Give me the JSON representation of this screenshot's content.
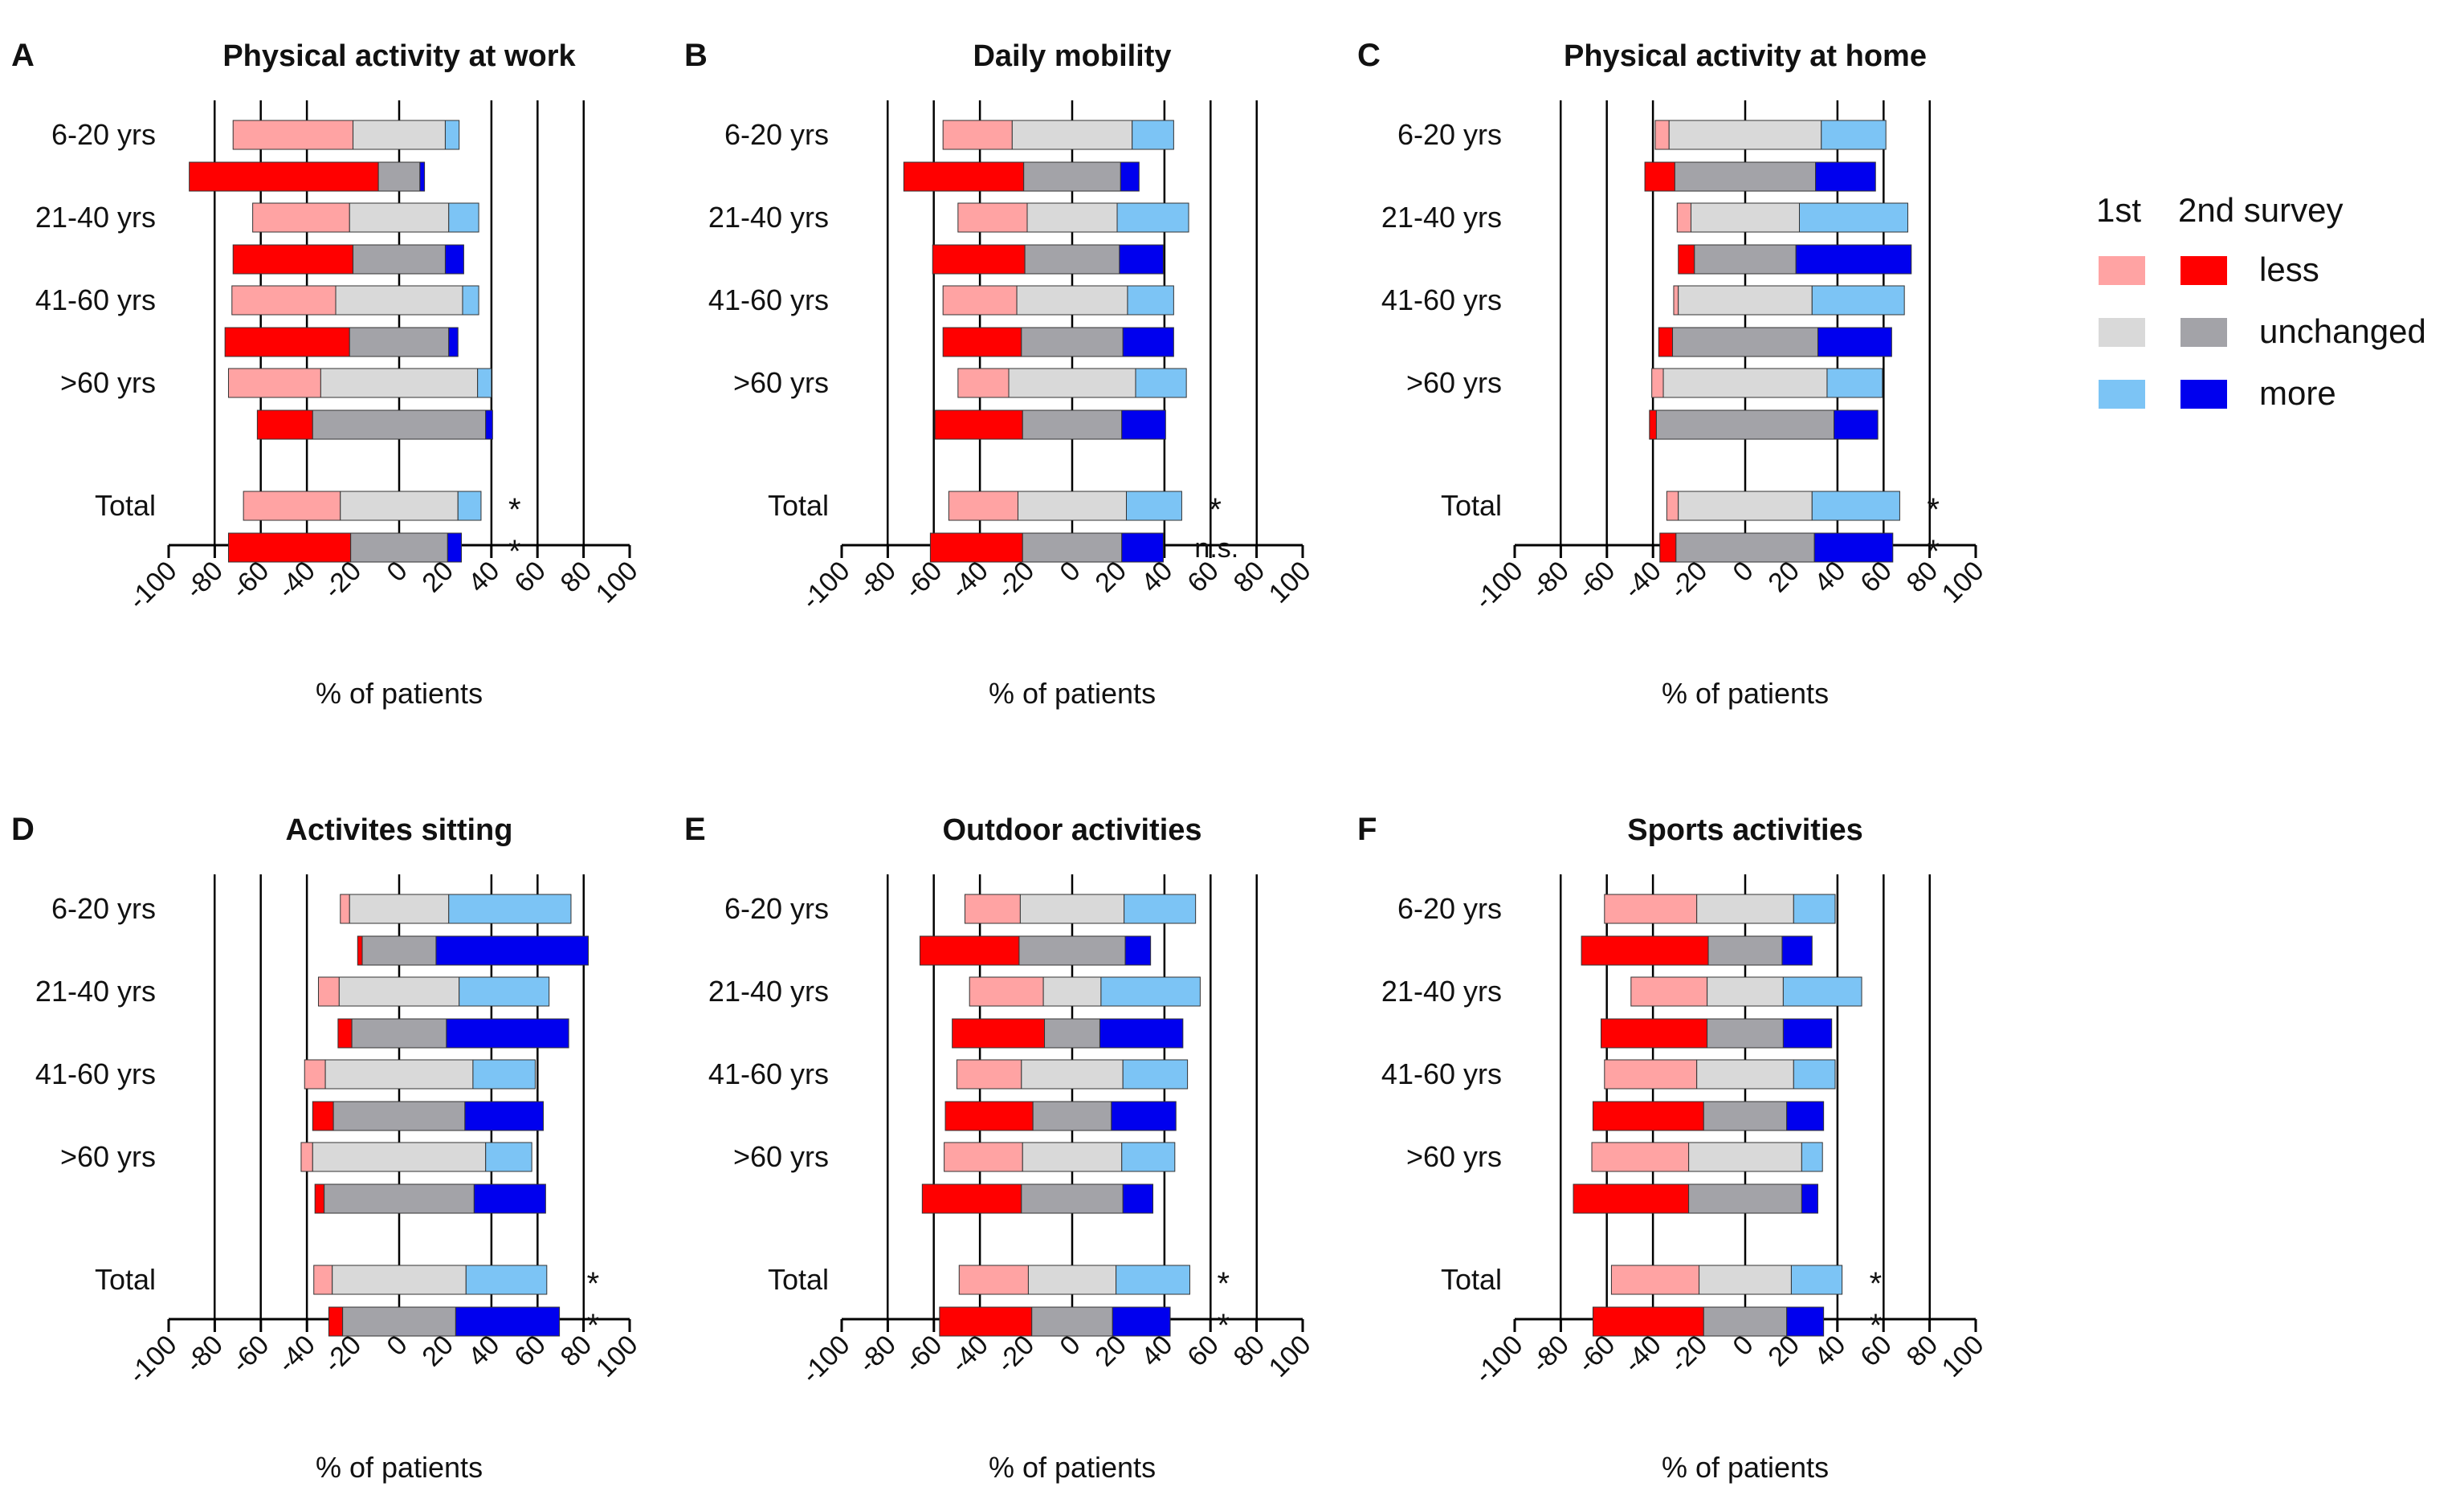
{
  "colors": {
    "first_less": "#FFA3A3",
    "first_unchanged": "#D9D9D9",
    "first_more": "#7CC4F5",
    "second_less": "#FF0000",
    "second_unchanged": "#A3A3A8",
    "second_more": "#0000EE",
    "axis": "#000000",
    "grid": "#000000"
  },
  "legend": {
    "col1": "1st",
    "col2": "2nd survey",
    "rows": [
      {
        "label": "less",
        "first_key": "first_less",
        "second_key": "second_less"
      },
      {
        "label": "unchanged",
        "first_key": "first_unchanged",
        "second_key": "second_unchanged"
      },
      {
        "label": "more",
        "first_key": "first_more",
        "second_key": "second_more"
      }
    ]
  },
  "chart_data": [
    {
      "type": "bar",
      "letter": "A",
      "title": "Physical activity at work",
      "xlabel": "% of patients",
      "xlim": [
        -100,
        100
      ],
      "xticks": [
        "-100",
        "-80",
        "-60",
        "-40",
        "-20",
        "0",
        "20",
        "40",
        "60",
        "80",
        "100"
      ],
      "gridlines": [
        -80,
        -60,
        -40,
        40,
        60,
        80
      ],
      "categories": [
        "6-20 yrs",
        "21-40 yrs",
        "41-60 yrs",
        ">60 yrs",
        "Total"
      ],
      "series": [
        {
          "name": "1st survey",
          "less": [
            52,
            42,
            45,
            40,
            42
          ],
          "unchanged": [
            40,
            43,
            55,
            68,
            51
          ],
          "more": [
            6,
            13,
            7,
            6,
            10
          ]
        },
        {
          "name": "2nd survey",
          "less": [
            82,
            52,
            54,
            24,
            53
          ],
          "unchanged": [
            18,
            40,
            43,
            75,
            42
          ],
          "more": [
            2,
            8,
            4,
            3,
            6
          ]
        }
      ],
      "significance": [
        "*",
        "*"
      ]
    },
    {
      "type": "bar",
      "letter": "B",
      "title": "Daily mobility",
      "xlabel": "% of patients",
      "xlim": [
        -100,
        100
      ],
      "xticks": [
        "-100",
        "-80",
        "-60",
        "-40",
        "-20",
        "0",
        "20",
        "40",
        "60",
        "80",
        "100"
      ],
      "gridlines": [
        -80,
        -60,
        -40,
        40,
        60,
        80
      ],
      "categories": [
        "6-20 yrs",
        "21-40 yrs",
        "41-60 yrs",
        ">60 yrs",
        "Total"
      ],
      "series": [
        {
          "name": "1st survey",
          "less": [
            30,
            30,
            32,
            22,
            30
          ],
          "unchanged": [
            52,
            39,
            48,
            55,
            47
          ],
          "more": [
            18,
            31,
            20,
            22,
            24
          ]
        },
        {
          "name": "2nd survey",
          "less": [
            52,
            40,
            34,
            38,
            40
          ],
          "unchanged": [
            42,
            41,
            44,
            43,
            43
          ],
          "more": [
            8,
            19,
            22,
            19,
            18
          ]
        }
      ],
      "significance": [
        "*",
        "n.s."
      ]
    },
    {
      "type": "bar",
      "letter": "C",
      "title": "Physical activity at home",
      "xlabel": "% of patients",
      "xlim": [
        -100,
        100
      ],
      "xticks": [
        "-100",
        "-80",
        "-60",
        "-40",
        "-20",
        "0",
        "20",
        "40",
        "60",
        "80",
        "100"
      ],
      "gridlines": [
        -80,
        -60,
        -40,
        40,
        60,
        80
      ],
      "categories": [
        "6-20 yrs",
        "21-40 yrs",
        "41-60 yrs",
        ">60 yrs",
        "Total"
      ],
      "series": [
        {
          "name": "1st survey",
          "less": [
            6,
            6,
            2,
            5,
            5
          ],
          "unchanged": [
            66,
            47,
            58,
            71,
            58
          ],
          "more": [
            28,
            47,
            40,
            24,
            38
          ]
        },
        {
          "name": "2nd survey",
          "less": [
            13,
            7,
            6,
            3,
            7
          ],
          "unchanged": [
            61,
            44,
            63,
            77,
            60
          ],
          "more": [
            26,
            50,
            32,
            19,
            34
          ]
        }
      ],
      "significance": [
        "*",
        "*"
      ]
    },
    {
      "type": "bar",
      "letter": "D",
      "title": "Activites sitting",
      "xlabel": "% of patients",
      "xlim": [
        -100,
        100
      ],
      "xticks": [
        "-100",
        "-80",
        "-60",
        "-40",
        "-20",
        "0",
        "20",
        "40",
        "60",
        "80",
        "100"
      ],
      "gridlines": [
        -80,
        -60,
        -40,
        40,
        60,
        80
      ],
      "categories": [
        "6-20 yrs",
        "21-40 yrs",
        "41-60 yrs",
        ">60 yrs",
        "Total"
      ],
      "series": [
        {
          "name": "1st survey",
          "less": [
            4,
            9,
            9,
            5,
            8
          ],
          "unchanged": [
            43,
            52,
            64,
            75,
            58
          ],
          "more": [
            53,
            39,
            27,
            20,
            35
          ]
        },
        {
          "name": "2nd survey",
          "less": [
            2,
            6,
            9,
            4,
            6
          ],
          "unchanged": [
            32,
            41,
            57,
            65,
            49
          ],
          "more": [
            66,
            53,
            34,
            31,
            45
          ]
        }
      ],
      "significance": [
        "*",
        "*"
      ]
    },
    {
      "type": "bar",
      "letter": "E",
      "title": "Outdoor activities",
      "xlabel": "% of patients",
      "xlim": [
        -100,
        100
      ],
      "xticks": [
        "-100",
        "-80",
        "-60",
        "-40",
        "-20",
        "0",
        "20",
        "40",
        "60",
        "80",
        "100"
      ],
      "gridlines": [
        -80,
        -60,
        -40,
        40,
        60,
        80
      ],
      "categories": [
        "6-20 yrs",
        "21-40 yrs",
        "41-60 yrs",
        ">60 yrs",
        "Total"
      ],
      "series": [
        {
          "name": "1st survey",
          "less": [
            24,
            32,
            28,
            34,
            30
          ],
          "unchanged": [
            45,
            25,
            44,
            43,
            38
          ],
          "more": [
            31,
            43,
            28,
            23,
            32
          ]
        },
        {
          "name": "2nd survey",
          "less": [
            43,
            40,
            38,
            43,
            40
          ],
          "unchanged": [
            46,
            24,
            34,
            44,
            35
          ],
          "more": [
            11,
            36,
            28,
            13,
            25
          ]
        }
      ],
      "significance": [
        "*",
        "*"
      ]
    },
    {
      "type": "bar",
      "letter": "F",
      "title": "Sports activities",
      "xlabel": "% of patients",
      "xlim": [
        -100,
        100
      ],
      "xticks": [
        "-100",
        "-80",
        "-60",
        "-40",
        "-20",
        "0",
        "20",
        "40",
        "60",
        "80",
        "100"
      ],
      "gridlines": [
        -80,
        -60,
        -40,
        40,
        60,
        80
      ],
      "categories": [
        "6-20 yrs",
        "21-40 yrs",
        "41-60 yrs",
        ">60 yrs",
        "Total"
      ],
      "series": [
        {
          "name": "1st survey",
          "less": [
            40,
            33,
            40,
            42,
            38
          ],
          "unchanged": [
            42,
            33,
            42,
            49,
            40
          ],
          "more": [
            18,
            34,
            18,
            9,
            22
          ]
        },
        {
          "name": "2nd survey",
          "less": [
            55,
            46,
            48,
            50,
            48
          ],
          "unchanged": [
            32,
            33,
            36,
            49,
            36
          ],
          "more": [
            13,
            21,
            16,
            7,
            16
          ]
        }
      ],
      "significance": [
        "*",
        "*"
      ]
    }
  ]
}
